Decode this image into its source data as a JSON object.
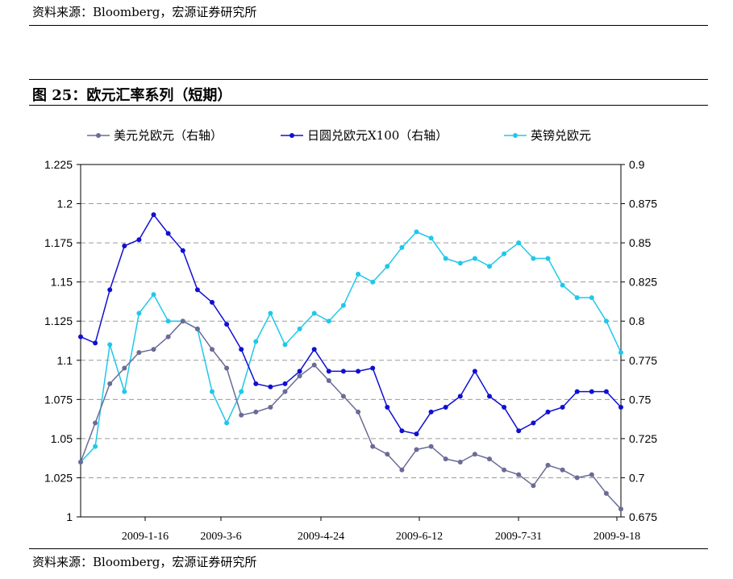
{
  "source_top": "资料来源：Bloomberg，宏源证券研究所",
  "source_bottom": "资料来源：Bloomberg，宏源证券研究所",
  "figure_title": "图 25：欧元汇率系列（短期）",
  "chart_data": {
    "type": "line",
    "title": "图 25：欧元汇率系列（短期）",
    "x_tick_labels": [
      "2009-1-16",
      "2009-3-6",
      "2009-4-24",
      "2009-6-12",
      "2009-7-31",
      "2009-9-18"
    ],
    "x_range": [
      "2009-01-02",
      "2009-09-18"
    ],
    "y_left": {
      "range": [
        1.0,
        1.225
      ],
      "ticks": [
        "1",
        "1.025",
        "1.05",
        "1.075",
        "1.1",
        "1.125",
        "1.15",
        "1.175",
        "1.2",
        "1.225"
      ]
    },
    "y_right": {
      "range": [
        0.675,
        0.9
      ],
      "ticks": [
        "0.675",
        "0.7",
        "0.725",
        "0.75",
        "0.775",
        "0.8",
        "0.825",
        "0.85",
        "0.875",
        "0.9"
      ]
    },
    "grid": "horizontal dashed",
    "legend_position": "top",
    "series": [
      {
        "name": "美元兑欧元（右轴）",
        "axis": "right",
        "color": "#6b6b96",
        "points": [
          [
            "2009-01-02",
            0.71
          ],
          [
            "2009-01-09",
            0.735
          ],
          [
            "2009-01-16",
            0.76
          ],
          [
            "2009-01-23",
            0.77
          ],
          [
            "2009-01-30",
            0.78
          ],
          [
            "2009-02-06",
            0.782
          ],
          [
            "2009-02-13",
            0.79
          ],
          [
            "2009-02-20",
            0.8
          ],
          [
            "2009-02-27",
            0.795
          ],
          [
            "2009-03-06",
            0.782
          ],
          [
            "2009-03-13",
            0.77
          ],
          [
            "2009-03-20",
            0.74
          ],
          [
            "2009-03-27",
            0.742
          ],
          [
            "2009-04-03",
            0.745
          ],
          [
            "2009-04-10",
            0.755
          ],
          [
            "2009-04-17",
            0.765
          ],
          [
            "2009-04-24",
            0.772
          ],
          [
            "2009-05-01",
            0.762
          ],
          [
            "2009-05-08",
            0.752
          ],
          [
            "2009-05-15",
            0.742
          ],
          [
            "2009-05-22",
            0.72
          ],
          [
            "2009-05-29",
            0.715
          ],
          [
            "2009-06-05",
            0.705
          ],
          [
            "2009-06-12",
            0.718
          ],
          [
            "2009-06-19",
            0.72
          ],
          [
            "2009-06-26",
            0.712
          ],
          [
            "2009-07-03",
            0.71
          ],
          [
            "2009-07-10",
            0.715
          ],
          [
            "2009-07-17",
            0.712
          ],
          [
            "2009-07-24",
            0.705
          ],
          [
            "2009-07-31",
            0.702
          ],
          [
            "2009-08-07",
            0.695
          ],
          [
            "2009-08-14",
            0.708
          ],
          [
            "2009-08-21",
            0.705
          ],
          [
            "2009-08-28",
            0.7
          ],
          [
            "2009-09-04",
            0.702
          ],
          [
            "2009-09-11",
            0.69
          ],
          [
            "2009-09-18",
            0.68
          ]
        ]
      },
      {
        "name": "日圆兑欧元X100（右轴）",
        "axis": "right",
        "color": "#1010d0",
        "points": [
          [
            "2009-01-02",
            0.79
          ],
          [
            "2009-01-09",
            0.786
          ],
          [
            "2009-01-16",
            0.82
          ],
          [
            "2009-01-23",
            0.848
          ],
          [
            "2009-01-30",
            0.852
          ],
          [
            "2009-02-06",
            0.868
          ],
          [
            "2009-02-13",
            0.856
          ],
          [
            "2009-02-20",
            0.845
          ],
          [
            "2009-02-27",
            0.82
          ],
          [
            "2009-03-06",
            0.812
          ],
          [
            "2009-03-13",
            0.798
          ],
          [
            "2009-03-20",
            0.782
          ],
          [
            "2009-03-27",
            0.76
          ],
          [
            "2009-04-03",
            0.758
          ],
          [
            "2009-04-10",
            0.76
          ],
          [
            "2009-04-17",
            0.768
          ],
          [
            "2009-04-24",
            0.782
          ],
          [
            "2009-05-01",
            0.768
          ],
          [
            "2009-05-08",
            0.768
          ],
          [
            "2009-05-15",
            0.768
          ],
          [
            "2009-05-22",
            0.77
          ],
          [
            "2009-05-29",
            0.745
          ],
          [
            "2009-06-05",
            0.73
          ],
          [
            "2009-06-12",
            0.728
          ],
          [
            "2009-06-19",
            0.742
          ],
          [
            "2009-06-26",
            0.745
          ],
          [
            "2009-07-03",
            0.752
          ],
          [
            "2009-07-10",
            0.768
          ],
          [
            "2009-07-17",
            0.752
          ],
          [
            "2009-07-24",
            0.745
          ],
          [
            "2009-07-31",
            0.73
          ],
          [
            "2009-08-07",
            0.735
          ],
          [
            "2009-08-14",
            0.742
          ],
          [
            "2009-08-21",
            0.745
          ],
          [
            "2009-08-28",
            0.755
          ],
          [
            "2009-09-04",
            0.755
          ],
          [
            "2009-09-11",
            0.755
          ],
          [
            "2009-09-18",
            0.745
          ]
        ]
      },
      {
        "name": "英镑兑欧元",
        "axis": "left",
        "color": "#20c8ea",
        "points": [
          [
            "2009-01-02",
            1.035
          ],
          [
            "2009-01-09",
            1.045
          ],
          [
            "2009-01-16",
            1.11
          ],
          [
            "2009-01-23",
            1.08
          ],
          [
            "2009-01-30",
            1.13
          ],
          [
            "2009-02-06",
            1.142
          ],
          [
            "2009-02-13",
            1.125
          ],
          [
            "2009-02-20",
            1.125
          ],
          [
            "2009-02-27",
            1.12
          ],
          [
            "2009-03-06",
            1.08
          ],
          [
            "2009-03-13",
            1.06
          ],
          [
            "2009-03-20",
            1.08
          ],
          [
            "2009-03-27",
            1.112
          ],
          [
            "2009-04-03",
            1.13
          ],
          [
            "2009-04-10",
            1.11
          ],
          [
            "2009-04-17",
            1.12
          ],
          [
            "2009-04-24",
            1.13
          ],
          [
            "2009-05-01",
            1.125
          ],
          [
            "2009-05-08",
            1.135
          ],
          [
            "2009-05-15",
            1.155
          ],
          [
            "2009-05-22",
            1.15
          ],
          [
            "2009-05-29",
            1.16
          ],
          [
            "2009-06-05",
            1.172
          ],
          [
            "2009-06-12",
            1.182
          ],
          [
            "2009-06-19",
            1.178
          ],
          [
            "2009-06-26",
            1.165
          ],
          [
            "2009-07-03",
            1.162
          ],
          [
            "2009-07-10",
            1.165
          ],
          [
            "2009-07-17",
            1.16
          ],
          [
            "2009-07-24",
            1.168
          ],
          [
            "2009-07-31",
            1.175
          ],
          [
            "2009-08-07",
            1.165
          ],
          [
            "2009-08-14",
            1.165
          ],
          [
            "2009-08-21",
            1.148
          ],
          [
            "2009-08-28",
            1.14
          ],
          [
            "2009-09-04",
            1.14
          ],
          [
            "2009-09-11",
            1.125
          ],
          [
            "2009-09-18",
            1.105
          ]
        ]
      }
    ]
  }
}
